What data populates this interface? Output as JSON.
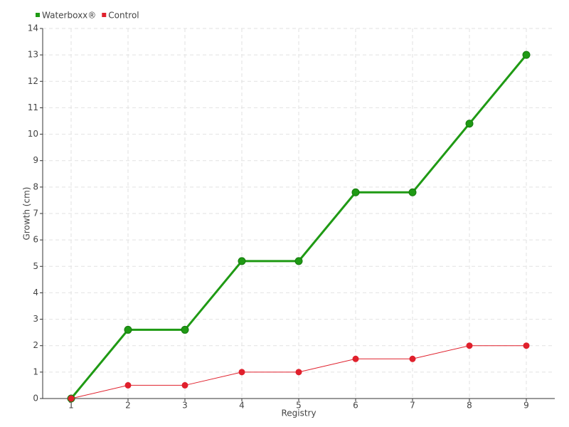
{
  "chart_data": {
    "type": "line",
    "x": [
      1,
      2,
      3,
      4,
      5,
      6,
      7,
      8,
      9
    ],
    "series": [
      {
        "name": "Waterboxx®",
        "color": "#1f9a14",
        "values": [
          0,
          2.6,
          2.6,
          5.2,
          5.2,
          7.8,
          7.8,
          10.4,
          13
        ]
      },
      {
        "name": "Control",
        "color": "#e0202c",
        "values": [
          0,
          0.5,
          0.5,
          1,
          1,
          1.5,
          1.5,
          2,
          2
        ]
      }
    ],
    "xlabel": "Registry",
    "ylabel": "Growth (cm)",
    "xlim": [
      0.5,
      9.5
    ],
    "xticks": [
      1,
      2,
      3,
      4,
      5,
      6,
      7,
      8,
      9
    ],
    "ylim": [
      0,
      14
    ],
    "yticks": [
      0,
      1,
      2,
      3,
      4,
      5,
      6,
      7,
      8,
      9,
      10,
      11,
      12,
      13,
      14
    ],
    "grid": true,
    "legend": "top-left"
  }
}
